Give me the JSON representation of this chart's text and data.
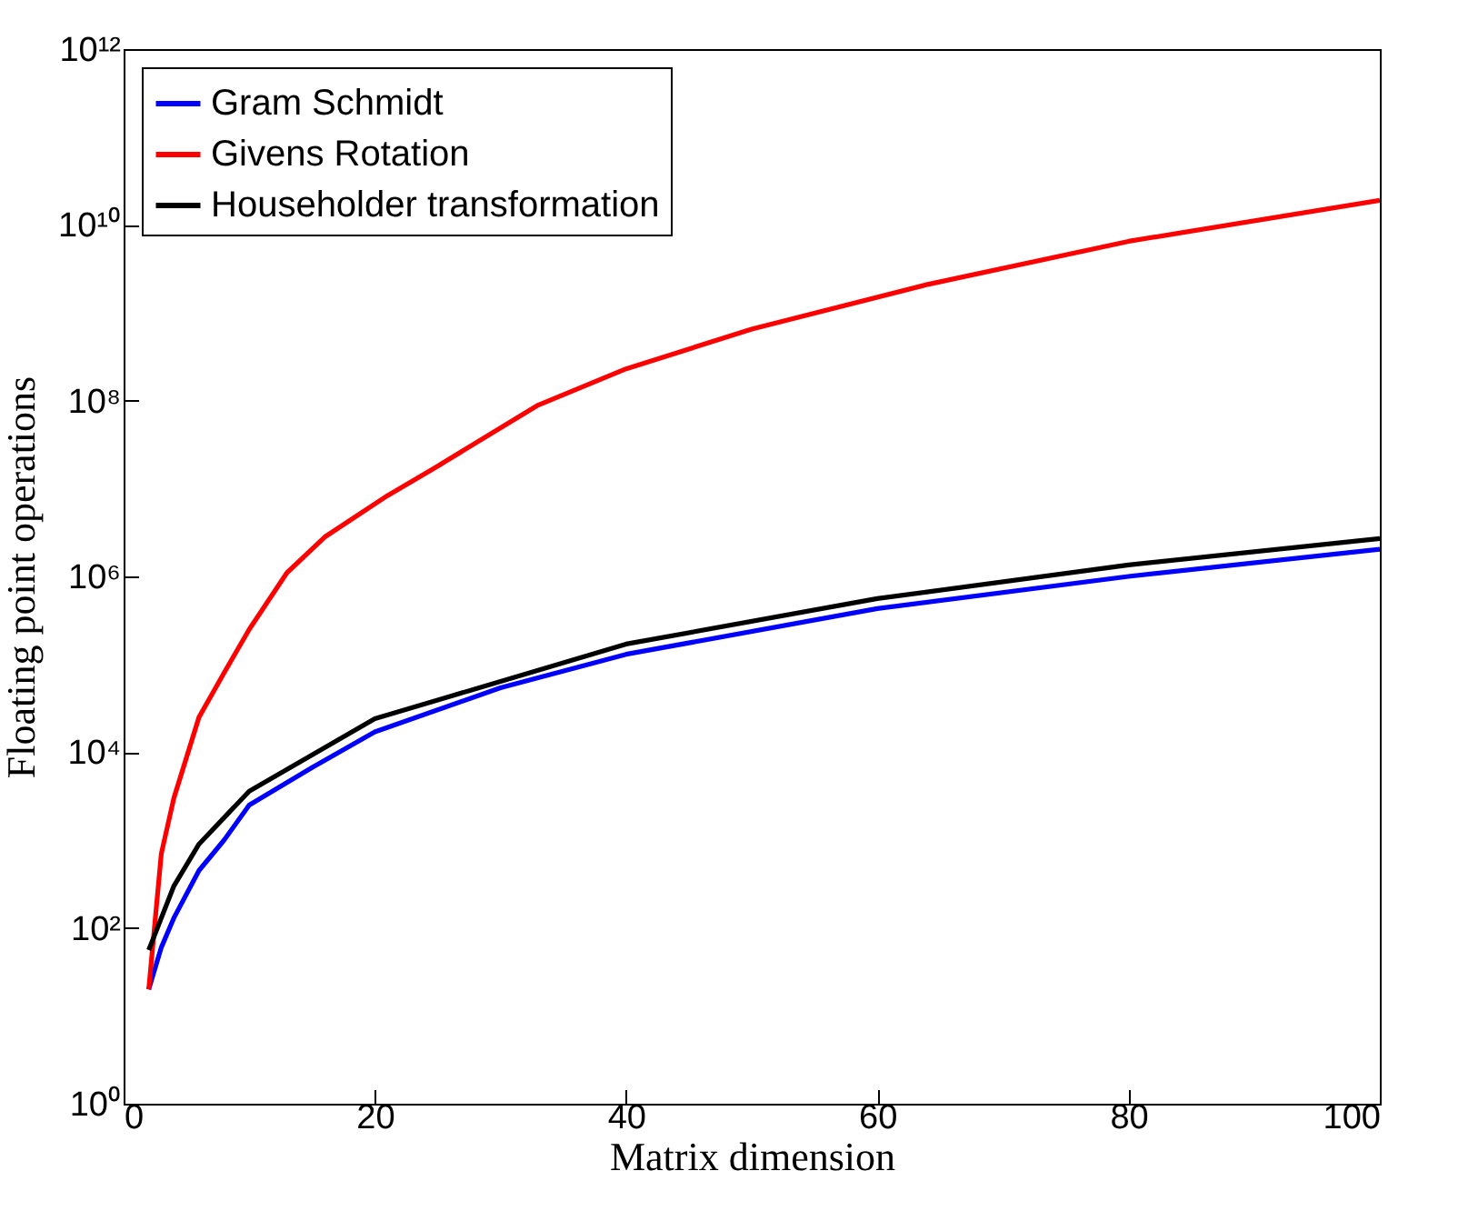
{
  "chart_data": {
    "type": "line",
    "xlabel": "Matrix dimension",
    "ylabel": "Floating point operations",
    "log": "y",
    "xlim": [
      0,
      100
    ],
    "xticks": [
      0,
      20,
      40,
      60,
      80,
      100
    ],
    "ylim": [
      1,
      1000000000000.0
    ],
    "yticks": [
      {
        "value": 1,
        "label": "10⁰"
      },
      {
        "value": 100,
        "label": "10²"
      },
      {
        "value": 10000,
        "label": "10⁴"
      },
      {
        "value": 1000000,
        "label": "10⁶"
      },
      {
        "value": 100000000,
        "label": "10⁸"
      },
      {
        "value": 10000000000,
        "label": "10¹⁰"
      },
      {
        "value": 1000000000000,
        "label": "10¹²"
      }
    ],
    "grid": false,
    "legend": "top left",
    "line_style": "solid",
    "marker": "none",
    "series": [
      {
        "name": "Gram Schmidt",
        "color": "#0000ff",
        "x": [
          2,
          3,
          4,
          6,
          8,
          10,
          15,
          20,
          30,
          40,
          60,
          80,
          100
        ],
        "values": [
          20,
          60,
          130,
          450,
          1000,
          2500,
          6700,
          17000,
          54000,
          130000,
          430000,
          1000000,
          2040000
        ]
      },
      {
        "name": "Givens Rotation",
        "color": "#ff0000",
        "x": [
          2,
          3,
          4,
          6,
          8,
          10,
          13,
          16,
          21,
          25,
          33,
          40,
          50,
          64,
          80,
          100
        ],
        "values": [
          20,
          700,
          3000,
          25000,
          80000,
          250000,
          1100000,
          2800000,
          8300000,
          18000000,
          89000000,
          230000000,
          650000000,
          2100000000,
          6500000000,
          19000000000
        ]
      },
      {
        "name": "Householder transformation",
        "color": "#000000",
        "x": [
          2,
          4,
          6,
          10,
          20,
          40,
          60,
          80,
          100
        ],
        "values": [
          56,
          300,
          900,
          3600,
          24000,
          170000,
          560000,
          1350000,
          2700000
        ]
      }
    ]
  }
}
